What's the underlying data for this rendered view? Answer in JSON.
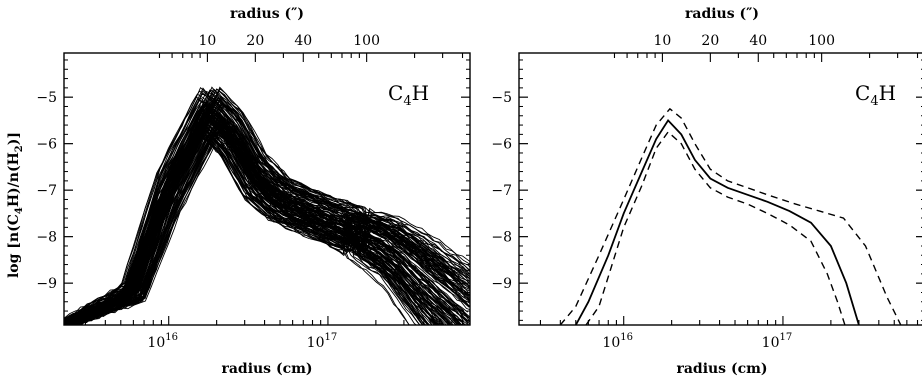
{
  "chart_data": [
    {
      "type": "line",
      "panel": "left",
      "label_main": "C",
      "label_sub": "4",
      "label_tail": "H",
      "xlabel_bottom": "radius (cm)",
      "xlabel_top": "radius (″)",
      "ylabel_parts": [
        "log [n(C",
        "4",
        "H)/n(H",
        "2",
        ")]"
      ],
      "xscale": "log",
      "xlim_cm": [
        2200000000000000.0,
        7.8e+17
      ],
      "ylim": [
        -9.9,
        -4.05
      ],
      "yticks": [
        -5,
        -6,
        -7,
        -8,
        -9
      ],
      "ytick_labels": [
        "−5",
        "−6",
        "−7",
        "−8",
        "−9"
      ],
      "xticks_bottom": [
        {
          "value": 1e+16,
          "mantissa": "10",
          "exp": "16"
        },
        {
          "value": 1e+17,
          "mantissa": "10",
          "exp": "17"
        }
      ],
      "xticks_top_labels": [
        "10",
        "20",
        "40",
        "100"
      ],
      "xticks_top_values_arcsec": [
        10,
        20,
        40,
        100
      ],
      "grid": false,
      "n_curves": 140,
      "description_band": {
        "x_cm": [
          2200000000000000.0,
          6000000000000000.0,
          1e+16,
          1.8e+16,
          2.5e+16,
          3.5e+16,
          5e+16,
          8e+16,
          1.5e+17,
          2.5e+17,
          4e+17,
          7.8e+17
        ],
        "y_center": [
          -9.9,
          -9.2,
          -7.0,
          -5.3,
          -5.8,
          -6.7,
          -7.2,
          -7.5,
          -7.9,
          -8.3,
          -9.0,
          -9.9
        ],
        "spread": [
          0.0,
          0.2,
          0.5,
          0.5,
          0.5,
          0.5,
          0.45,
          0.45,
          0.5,
          0.7,
          1.0,
          1.2
        ]
      }
    },
    {
      "type": "line",
      "panel": "right",
      "label_main": "C",
      "label_sub": "4",
      "label_tail": "H",
      "xlabel_bottom": "radius (cm)",
      "xlabel_top": "radius (″)",
      "xscale": "log",
      "xlim_cm": [
        2200000000000000.0,
        7.8e+17
      ],
      "ylim": [
        -9.9,
        -4.05
      ],
      "yticks": [
        -5,
        -6,
        -7,
        -8,
        -9
      ],
      "ytick_labels": [
        "−5",
        "−6",
        "−7",
        "−8",
        "−9"
      ],
      "xticks_bottom": [
        {
          "value": 1e+16,
          "mantissa": "10",
          "exp": "16"
        },
        {
          "value": 1e+17,
          "mantissa": "10",
          "exp": "17"
        }
      ],
      "xticks_top_labels": [
        "10",
        "20",
        "40",
        "100"
      ],
      "xticks_top_values_arcsec": [
        10,
        20,
        40,
        100
      ],
      "grid": false,
      "series": [
        {
          "style": "solid",
          "x_cm": [
            5000000000000000.0,
            6000000000000000.0,
            8000000000000000.0,
            1e+16,
            1.3e+16,
            1.6e+16,
            1.9e+16,
            2.3e+16,
            2.8e+16,
            3.5e+16,
            4.5e+16,
            6e+16,
            8e+16,
            1.1e+17,
            1.5e+17,
            2e+17,
            2.5e+17,
            3e+17
          ],
          "y": [
            -9.9,
            -9.4,
            -8.4,
            -7.5,
            -6.6,
            -5.9,
            -5.5,
            -5.8,
            -6.35,
            -6.75,
            -6.95,
            -7.1,
            -7.25,
            -7.45,
            -7.7,
            -8.2,
            -9.0,
            -9.9
          ]
        },
        {
          "style": "dashed",
          "x_cm": [
            4000000000000000.0,
            5000000000000000.0,
            7000000000000000.0,
            1e+16,
            1.3e+16,
            1.6e+16,
            1.95e+16,
            2.3e+16,
            2.8e+16,
            3.5e+16,
            4.5e+16,
            6e+16,
            8e+16,
            1.2e+17,
            1.7e+17,
            2.4e+17,
            3.3e+17,
            4.5e+17,
            5.5e+17
          ],
          "y": [
            -9.9,
            -9.5,
            -8.4,
            -7.2,
            -6.3,
            -5.6,
            -5.25,
            -5.45,
            -6.0,
            -6.55,
            -6.8,
            -6.95,
            -7.1,
            -7.3,
            -7.45,
            -7.6,
            -8.2,
            -9.3,
            -9.9
          ]
        },
        {
          "style": "dashed",
          "x_cm": [
            5800000000000000.0,
            7000000000000000.0,
            1e+16,
            1.3e+16,
            1.6e+16,
            1.9e+16,
            2.3e+16,
            2.8e+16,
            3.5e+16,
            4.5e+16,
            6e+16,
            8e+16,
            1.1e+17,
            1.5e+17,
            1.9e+17,
            2.2e+17,
            2.45e+17
          ],
          "y": [
            -9.9,
            -9.5,
            -7.8,
            -6.9,
            -6.1,
            -5.75,
            -6.0,
            -6.55,
            -6.95,
            -7.15,
            -7.3,
            -7.5,
            -7.75,
            -8.1,
            -8.8,
            -9.4,
            -9.9
          ]
        }
      ]
    }
  ]
}
